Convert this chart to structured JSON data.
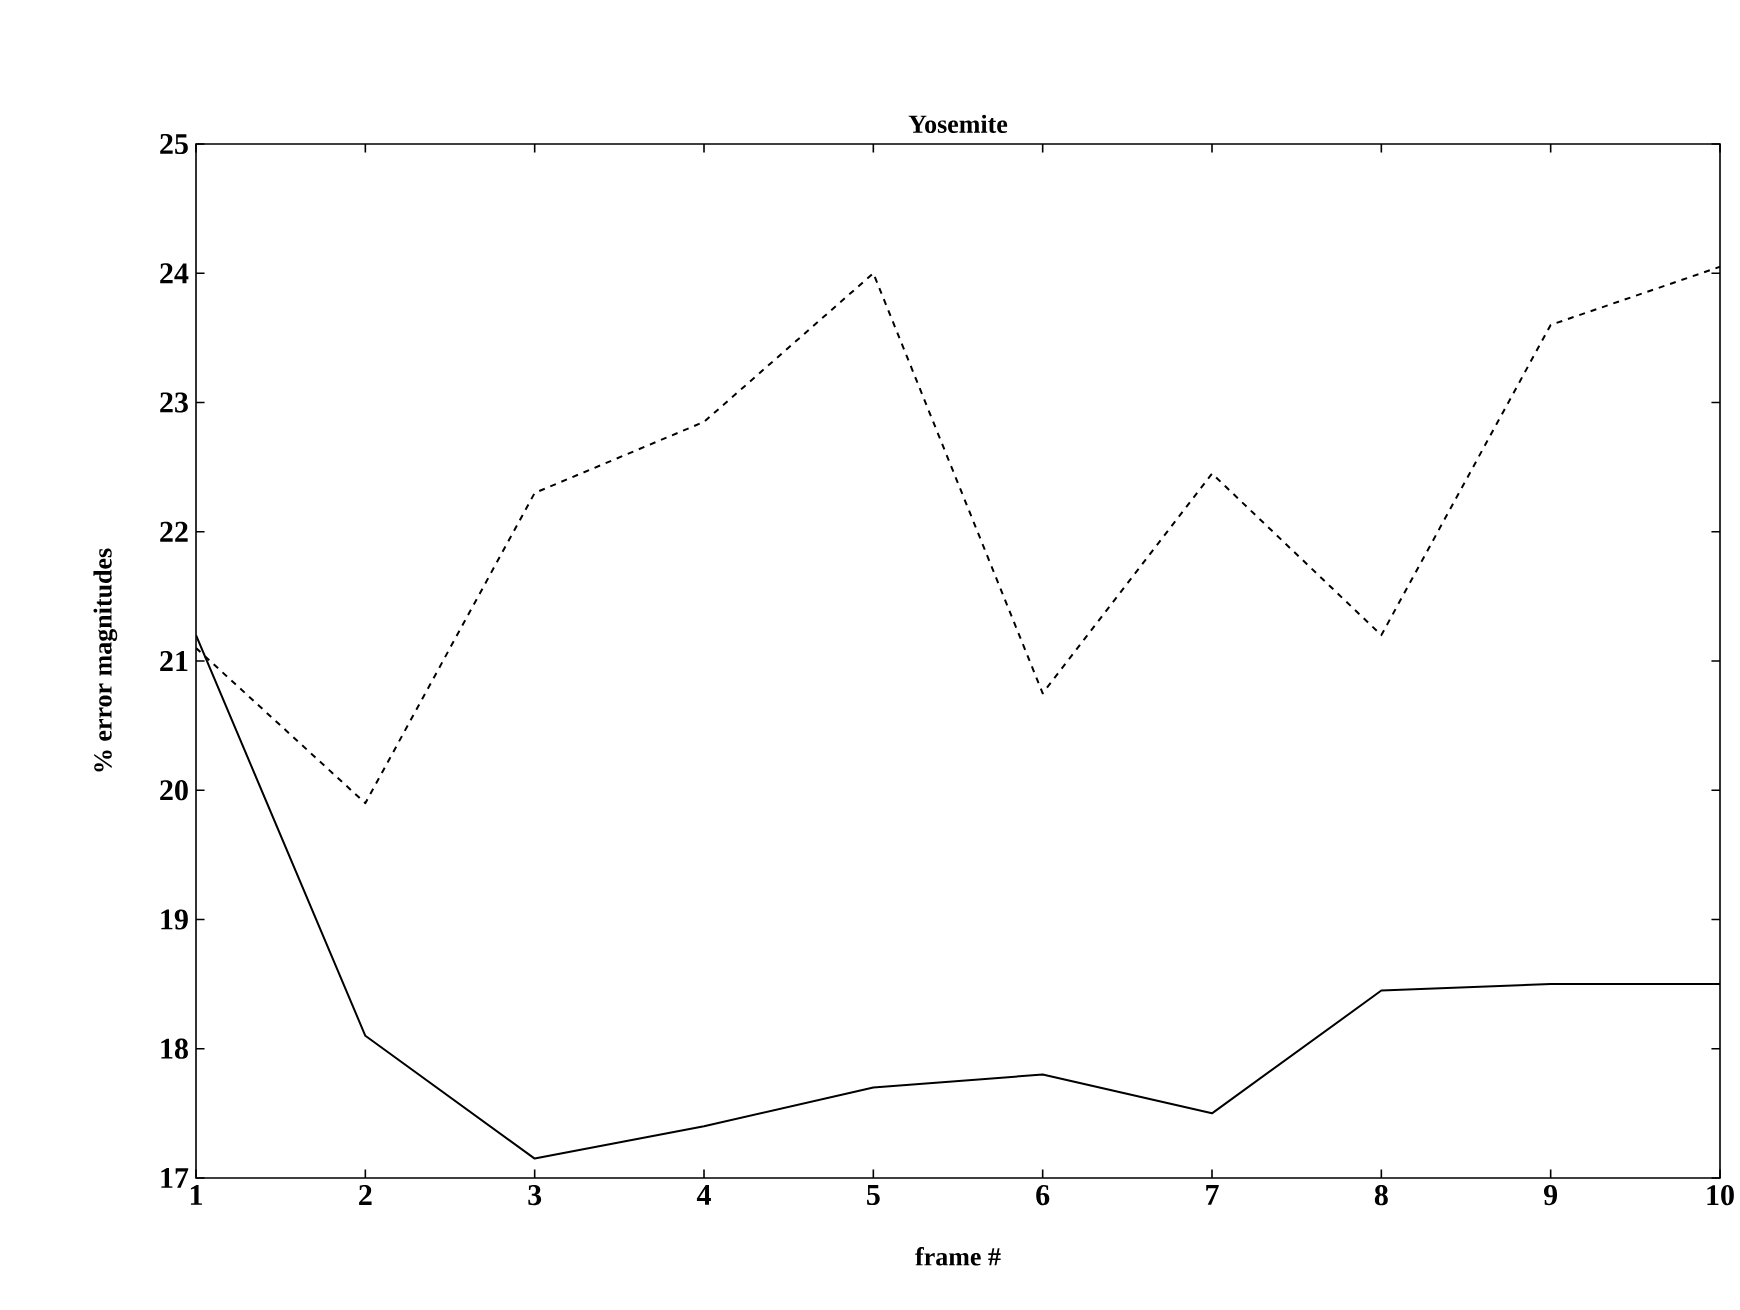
{
  "chart_data": {
    "type": "line",
    "title": "Yosemite",
    "xlabel": "frame #",
    "ylabel": "% error magnitudes",
    "x": [
      1,
      2,
      3,
      4,
      5,
      6,
      7,
      8,
      9,
      10
    ],
    "series": [
      {
        "color": "#000000",
        "line_style": "dashed",
        "values": [
          21.1,
          19.9,
          22.3,
          22.85,
          24.0,
          20.75,
          22.45,
          21.2,
          23.6,
          24.05
        ]
      },
      {
        "color": "#000000",
        "line_style": "solid",
        "values": [
          21.2,
          18.1,
          17.15,
          17.4,
          17.7,
          17.8,
          17.5,
          18.45,
          18.5,
          18.5
        ]
      }
    ],
    "xlim": [
      1,
      10
    ],
    "ylim": [
      17,
      25
    ],
    "xticks": [
      1,
      2,
      3,
      4,
      5,
      6,
      7,
      8,
      9,
      10
    ],
    "yticks": [
      17,
      18,
      19,
      20,
      21,
      22,
      23,
      24,
      25
    ],
    "grid": false,
    "marker": "none"
  }
}
